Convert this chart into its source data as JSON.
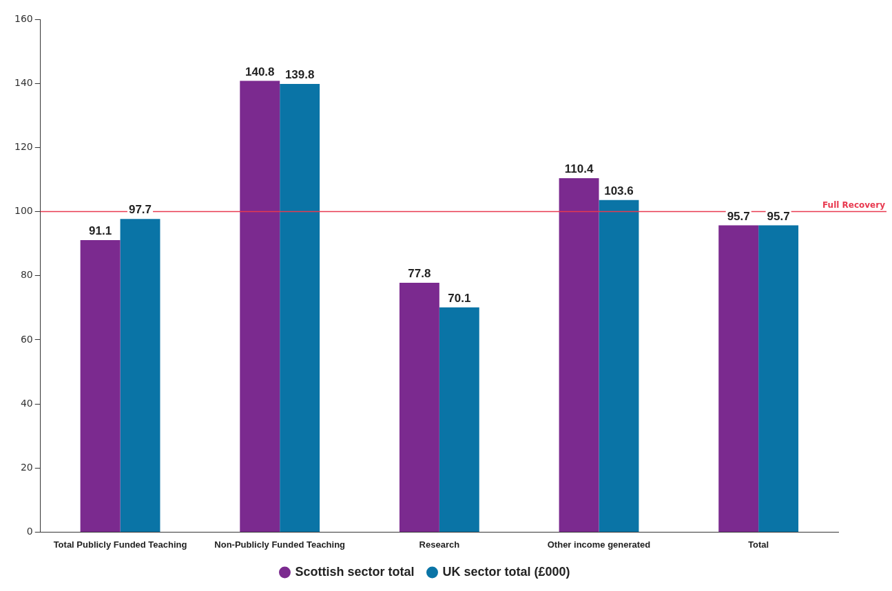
{
  "chart_data": {
    "type": "bar",
    "categories": [
      "Total Publicly Funded Teaching",
      "Non-Publicly Funded Teaching",
      "Research",
      "Other income generated",
      "Total"
    ],
    "series": [
      {
        "name": "Scottish sector total",
        "color": "#7b2a8f",
        "values": [
          91.1,
          140.8,
          77.8,
          110.4,
          95.7
        ]
      },
      {
        "name": "UK sector total (£000)",
        "color": "#0a74a6",
        "values": [
          97.7,
          139.8,
          70.1,
          103.6,
          95.7
        ]
      }
    ],
    "ylim": [
      0,
      160
    ],
    "yticks": [
      0,
      20,
      40,
      60,
      80,
      100,
      120,
      140,
      160
    ],
    "grid": false,
    "legend": "bottom",
    "data_labels": true,
    "ref_lines": [
      {
        "axis": "y",
        "value": 100,
        "label": "Full Recovery",
        "color": "#e8394f"
      }
    ]
  }
}
